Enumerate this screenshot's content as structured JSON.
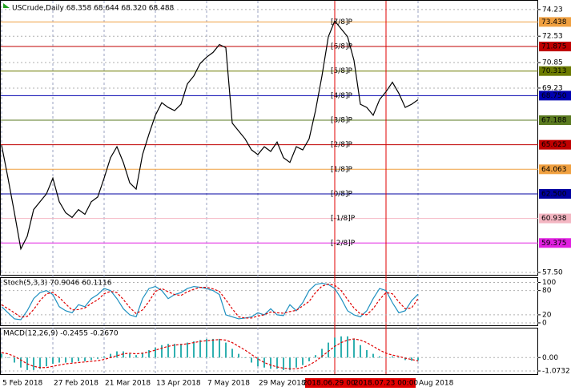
{
  "chart_data": [
    {
      "type": "line",
      "title": "USCrude,Daily 68.358 68.644 68.320 68.488",
      "color": "#000000",
      "categories": [
        "5 Feb 2018",
        null,
        null,
        null,
        null,
        null,
        null,
        null,
        "27 Feb 2018",
        null,
        null,
        null,
        null,
        null,
        null,
        null,
        "21 Mar 2018",
        null,
        null,
        null,
        null,
        null,
        null,
        null,
        "13 Apr 2018",
        null,
        null,
        null,
        null,
        null,
        null,
        null,
        "7 May 2018",
        null,
        null,
        null,
        null,
        null,
        null,
        null,
        "29 May 2018",
        null,
        null,
        null,
        null,
        null,
        null,
        null,
        null,
        null,
        null,
        null,
        "2018.06.29 00:00",
        null,
        null,
        null,
        null,
        null,
        null,
        null,
        "2018.07.23 00:00",
        null,
        null,
        null,
        null,
        "Aug 2018"
      ],
      "values": [
        65.6,
        63.5,
        61.3,
        59.0,
        59.8,
        61.5,
        62.0,
        62.5,
        63.5,
        62.0,
        61.3,
        61.0,
        61.5,
        61.2,
        62.0,
        62.3,
        63.5,
        64.8,
        65.5,
        64.5,
        63.2,
        62.8,
        65.0,
        66.3,
        67.5,
        68.3,
        68.0,
        67.8,
        68.2,
        69.5,
        70.0,
        70.8,
        71.2,
        71.5,
        72.0,
        71.8,
        67.0,
        66.5,
        66.0,
        65.3,
        65.0,
        65.5,
        65.2,
        65.8,
        64.8,
        64.5,
        65.5,
        65.3,
        66.0,
        67.8,
        70.0,
        72.5,
        73.5,
        73.0,
        72.5,
        71.0,
        68.2,
        68.0,
        67.5,
        68.5,
        69.0,
        69.6,
        68.9,
        68.0,
        68.2,
        68.488
      ],
      "ylim": [
        57.35,
        74.63
      ],
      "yticks": [
        74.23,
        72.53,
        70.85,
        69.23,
        {
          "value": 57.5,
          "label": "57.50"
        }
      ],
      "vlines": [
        52,
        60
      ],
      "vline_color": "#e00000",
      "levels": [
        {
          "value": 73.438,
          "label": "[7/8]P",
          "color": "#f0a040"
        },
        {
          "value": 71.875,
          "label": "[6/8]P",
          "color": "#c00000"
        },
        {
          "value": 70.313,
          "label": "[5/8]P",
          "color": "#6b7a00"
        },
        {
          "value": {
            "value": 68.75,
            "label": "68.750"
          },
          "label": "[4/8]P",
          "color": "#0000b0"
        },
        {
          "value": 67.188,
          "label": "[3/8]P",
          "color": "#5a7a20"
        },
        {
          "value": 65.625,
          "label": "[2/8]P",
          "color": "#c00000"
        },
        {
          "value": 64.063,
          "label": "[1/8]P",
          "color": "#f0a040"
        },
        {
          "value": {
            "value": 62.5,
            "label": "62.500"
          },
          "label": "[0/8]P",
          "color": "#0000a0"
        },
        {
          "value": 60.938,
          "label": "[-1/8]P",
          "color": "#f4b6c2"
        },
        {
          "value": 59.375,
          "label": "[-2/8]P",
          "color": "#e020e0"
        }
      ]
    },
    {
      "type": "line",
      "title": "Stoch(5,3,3) 70.9046 60.1116",
      "series": [
        {
          "color": "#1e90c0",
          "values": [
            40,
            25,
            10,
            8,
            30,
            60,
            75,
            80,
            70,
            40,
            30,
            25,
            45,
            40,
            60,
            70,
            85,
            80,
            60,
            35,
            20,
            15,
            60,
            85,
            90,
            80,
            60,
            70,
            75,
            85,
            90,
            88,
            85,
            80,
            70,
            20,
            15,
            10,
            12,
            15,
            25,
            20,
            35,
            20,
            18,
            45,
            30,
            50,
            80,
            95,
            98,
            95,
            85,
            60,
            30,
            20,
            15,
            30,
            60,
            85,
            80,
            50,
            25,
            30,
            55,
            70.9046
          ]
        },
        {
          "color": "#e00000",
          "dashed": true,
          "values": [
            45,
            35,
            25,
            14,
            16,
            33,
            55,
            72,
            75,
            63,
            47,
            32,
            33,
            37,
            48,
            57,
            72,
            78,
            75,
            58,
            38,
            23,
            32,
            53,
            78,
            85,
            77,
            70,
            68,
            77,
            83,
            88,
            88,
            84,
            78,
            57,
            35,
            15,
            12,
            12,
            17,
            20,
            27,
            25,
            24,
            28,
            31,
            42,
            53,
            75,
            91,
            96,
            93,
            80,
            58,
            37,
            22,
            20,
            35,
            58,
            75,
            72,
            52,
            35,
            37,
            60.1116
          ]
        }
      ],
      "ylim": [
        -6,
        111
      ],
      "yticks": [
        100,
        80,
        20,
        0
      ]
    },
    {
      "type": "bar",
      "title": "MACD(12,26,9) -0.2455 -0.2670",
      "series": [
        {
          "type": "bar",
          "color": "#30b0b0",
          "values": [
            0.3,
            0.0,
            -0.4,
            -0.8,
            -1.0,
            -1.0,
            -0.9,
            -0.7,
            -0.5,
            -0.4,
            -0.4,
            -0.4,
            -0.3,
            -0.3,
            -0.2,
            -0.1,
            0.1,
            0.3,
            0.5,
            0.5,
            0.3,
            0.2,
            0.4,
            0.6,
            0.8,
            1.0,
            1.1,
            1.1,
            1.1,
            1.2,
            1.3,
            1.4,
            1.5,
            1.5,
            1.5,
            1.2,
            0.7,
            0.3,
            0.0,
            -0.4,
            -0.7,
            -0.8,
            -0.9,
            -0.9,
            -1.0,
            -1.0,
            -0.8,
            -0.6,
            -0.3,
            0.2,
            0.7,
            1.2,
            1.6,
            1.7,
            1.7,
            1.5,
            1.0,
            0.6,
            0.3,
            0.1,
            0.0,
            0.1,
            0.0,
            -0.2,
            -0.25,
            -0.2455
          ]
        },
        {
          "type": "line",
          "color": "#e00000",
          "dashed": true,
          "values": [
            0.4,
            0.3,
            0.1,
            -0.2,
            -0.5,
            -0.7,
            -0.8,
            -0.8,
            -0.7,
            -0.6,
            -0.5,
            -0.45,
            -0.4,
            -0.35,
            -0.3,
            -0.25,
            -0.15,
            0.0,
            0.15,
            0.3,
            0.35,
            0.3,
            0.35,
            0.45,
            0.6,
            0.75,
            0.9,
            1.0,
            1.05,
            1.1,
            1.2,
            1.3,
            1.35,
            1.4,
            1.45,
            1.4,
            1.2,
            0.9,
            0.6,
            0.25,
            -0.1,
            -0.4,
            -0.6,
            -0.75,
            -0.85,
            -0.9,
            -0.9,
            -0.8,
            -0.6,
            -0.3,
            0.1,
            0.5,
            0.9,
            1.2,
            1.4,
            1.5,
            1.4,
            1.2,
            0.9,
            0.6,
            0.35,
            0.2,
            0.1,
            -0.05,
            -0.15,
            -0.267
          ]
        }
      ],
      "ylim": [
        -1.33,
        2.33
      ],
      "yticks": [
        {
          "value": 0,
          "label": "0.00"
        },
        -1.0732
      ]
    }
  ]
}
